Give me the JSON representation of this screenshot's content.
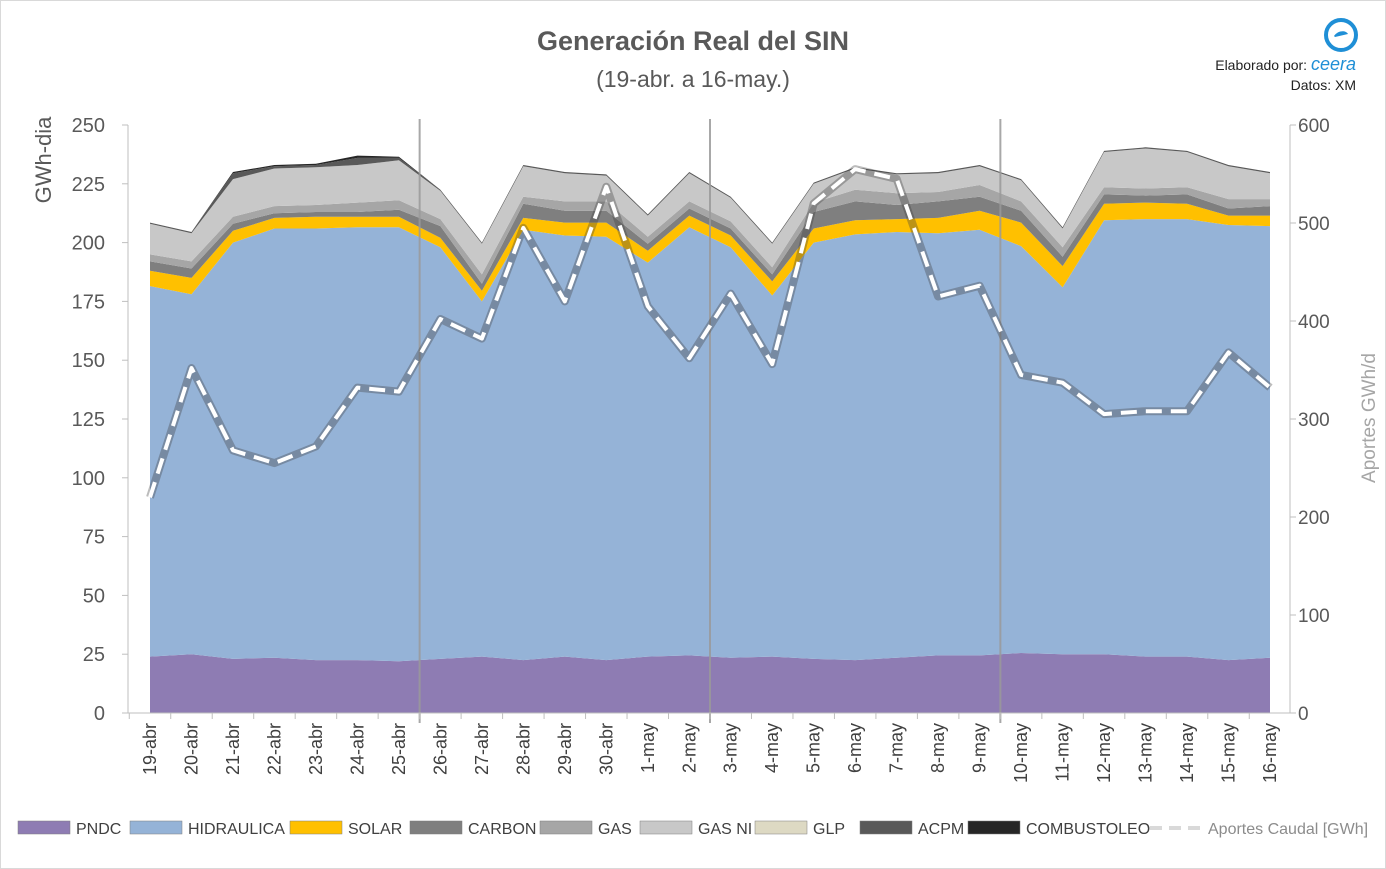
{
  "chart_data": {
    "type": "area",
    "title": "Generación Real del SIN",
    "subtitle": "(19-abr. a 16-may.)",
    "credit_label": "Elaborado por:",
    "credit_brand": "ceera",
    "credit_source": "Datos: XM",
    "ylabel": "GWh-dia",
    "y2label": "Aportes GWh/d",
    "ylim": [
      0,
      250
    ],
    "y2lim": [
      0,
      600
    ],
    "yticks": [
      0,
      25,
      50,
      75,
      100,
      125,
      150,
      175,
      200,
      225,
      250
    ],
    "y2ticks": [
      0,
      100,
      200,
      300,
      400,
      500,
      600
    ],
    "grid": false,
    "legend_position": "bottom",
    "categories": [
      "19-abr",
      "20-abr",
      "21-abr",
      "22-abr",
      "23-abr",
      "24-abr",
      "25-abr",
      "26-abr",
      "27-abr",
      "28-abr",
      "29-abr",
      "30-abr",
      "1-may",
      "2-may",
      "3-may",
      "4-may",
      "5-may",
      "6-may",
      "7-may",
      "8-may",
      "9-may",
      "10-may",
      "11-may",
      "12-may",
      "13-may",
      "14-may",
      "15-may",
      "16-may"
    ],
    "week_separators_after": [
      "25-abr",
      "2-may",
      "9-may"
    ],
    "series": [
      {
        "name": "PNDC",
        "color": "#8e7cb3",
        "values": [
          24,
          25,
          23,
          23.5,
          22.5,
          22.5,
          22,
          23,
          24,
          22.5,
          24,
          22.5,
          24,
          24.5,
          23.5,
          24,
          23,
          22.5,
          23.5,
          24.5,
          24.5,
          25.5,
          25,
          25,
          24,
          24,
          22.5,
          23.5
        ]
      },
      {
        "name": "HIDRAULICA",
        "color": "#95b3d7",
        "values": [
          157.5,
          153,
          177,
          182.5,
          183.5,
          184,
          184.5,
          175,
          151,
          183,
          179,
          180,
          167.5,
          182,
          174.5,
          153.5,
          177,
          181,
          181,
          179.5,
          181,
          173,
          156,
          184.5,
          186,
          186,
          185,
          183.5
        ]
      },
      {
        "name": "SOLAR",
        "color": "#ffc000",
        "values": [
          6.5,
          7,
          5,
          4.5,
          5,
          4.5,
          4.5,
          4,
          4.5,
          5,
          5.5,
          6,
          5,
          5,
          5,
          6,
          6,
          6,
          5.5,
          6.5,
          8,
          10,
          9,
          7,
          7,
          6.5,
          4,
          4.5
        ]
      },
      {
        "name": "CARBON",
        "color": "#7f7f7f",
        "values": [
          4,
          4,
          3,
          2,
          2,
          2,
          3,
          5,
          3,
          6,
          5,
          5,
          3,
          3,
          3,
          3,
          7,
          8,
          6,
          7,
          6,
          5,
          4,
          4,
          3,
          4,
          3,
          4
        ]
      },
      {
        "name": "GAS",
        "color": "#a6a6a6",
        "values": [
          3,
          3,
          3,
          3,
          3,
          4,
          4,
          3,
          4,
          3,
          4,
          4,
          3,
          3,
          3,
          3,
          4,
          5,
          5,
          4,
          5,
          4,
          4,
          3,
          3,
          3,
          4,
          3
        ]
      },
      {
        "name": "GAS NI",
        "color": "#c8c8c8",
        "values": [
          13,
          12,
          16,
          16,
          16,
          16,
          17,
          12,
          13,
          13,
          12,
          11,
          9,
          12,
          10,
          10,
          8,
          9,
          8,
          8,
          8,
          9,
          8,
          15,
          17,
          15,
          14,
          11
        ]
      },
      {
        "name": "GLP",
        "color": "#ddd9c3",
        "values": [
          0,
          0,
          0,
          0,
          0,
          0,
          0,
          0,
          0,
          0,
          0,
          0,
          0,
          0,
          0,
          0,
          0,
          0,
          0,
          0,
          0,
          0,
          0,
          0,
          0,
          0,
          0,
          0
        ]
      },
      {
        "name": "ACPM",
        "color": "#595959",
        "values": [
          0.5,
          0.5,
          2.5,
          1,
          1,
          3,
          1,
          0.5,
          0.5,
          0.5,
          0.5,
          0.5,
          0.5,
          0.5,
          0.5,
          0.5,
          0.5,
          0.5,
          0.5,
          0.5,
          0.5,
          0.5,
          0.5,
          0.5,
          0.5,
          0.5,
          0.5,
          0.5
        ]
      },
      {
        "name": "COMBUSTOLEO",
        "color": "#262626",
        "values": [
          0,
          0,
          0.5,
          0.5,
          0.5,
          1,
          0.5,
          0,
          0,
          0,
          0,
          0,
          0,
          0,
          0,
          0,
          0,
          0,
          0,
          0,
          0,
          0,
          0,
          0,
          0,
          0,
          0,
          0
        ]
      }
    ],
    "line_series": {
      "name": "Aportes Caudal [GWh]",
      "axis": "right",
      "style": "dashed-white",
      "values": [
        220,
        352,
        268,
        255,
        272,
        332,
        328,
        402,
        382,
        495,
        420,
        537,
        415,
        362,
        428,
        356,
        520,
        555,
        545,
        425,
        436,
        345,
        337,
        305,
        308,
        308,
        368,
        332
      ]
    }
  }
}
